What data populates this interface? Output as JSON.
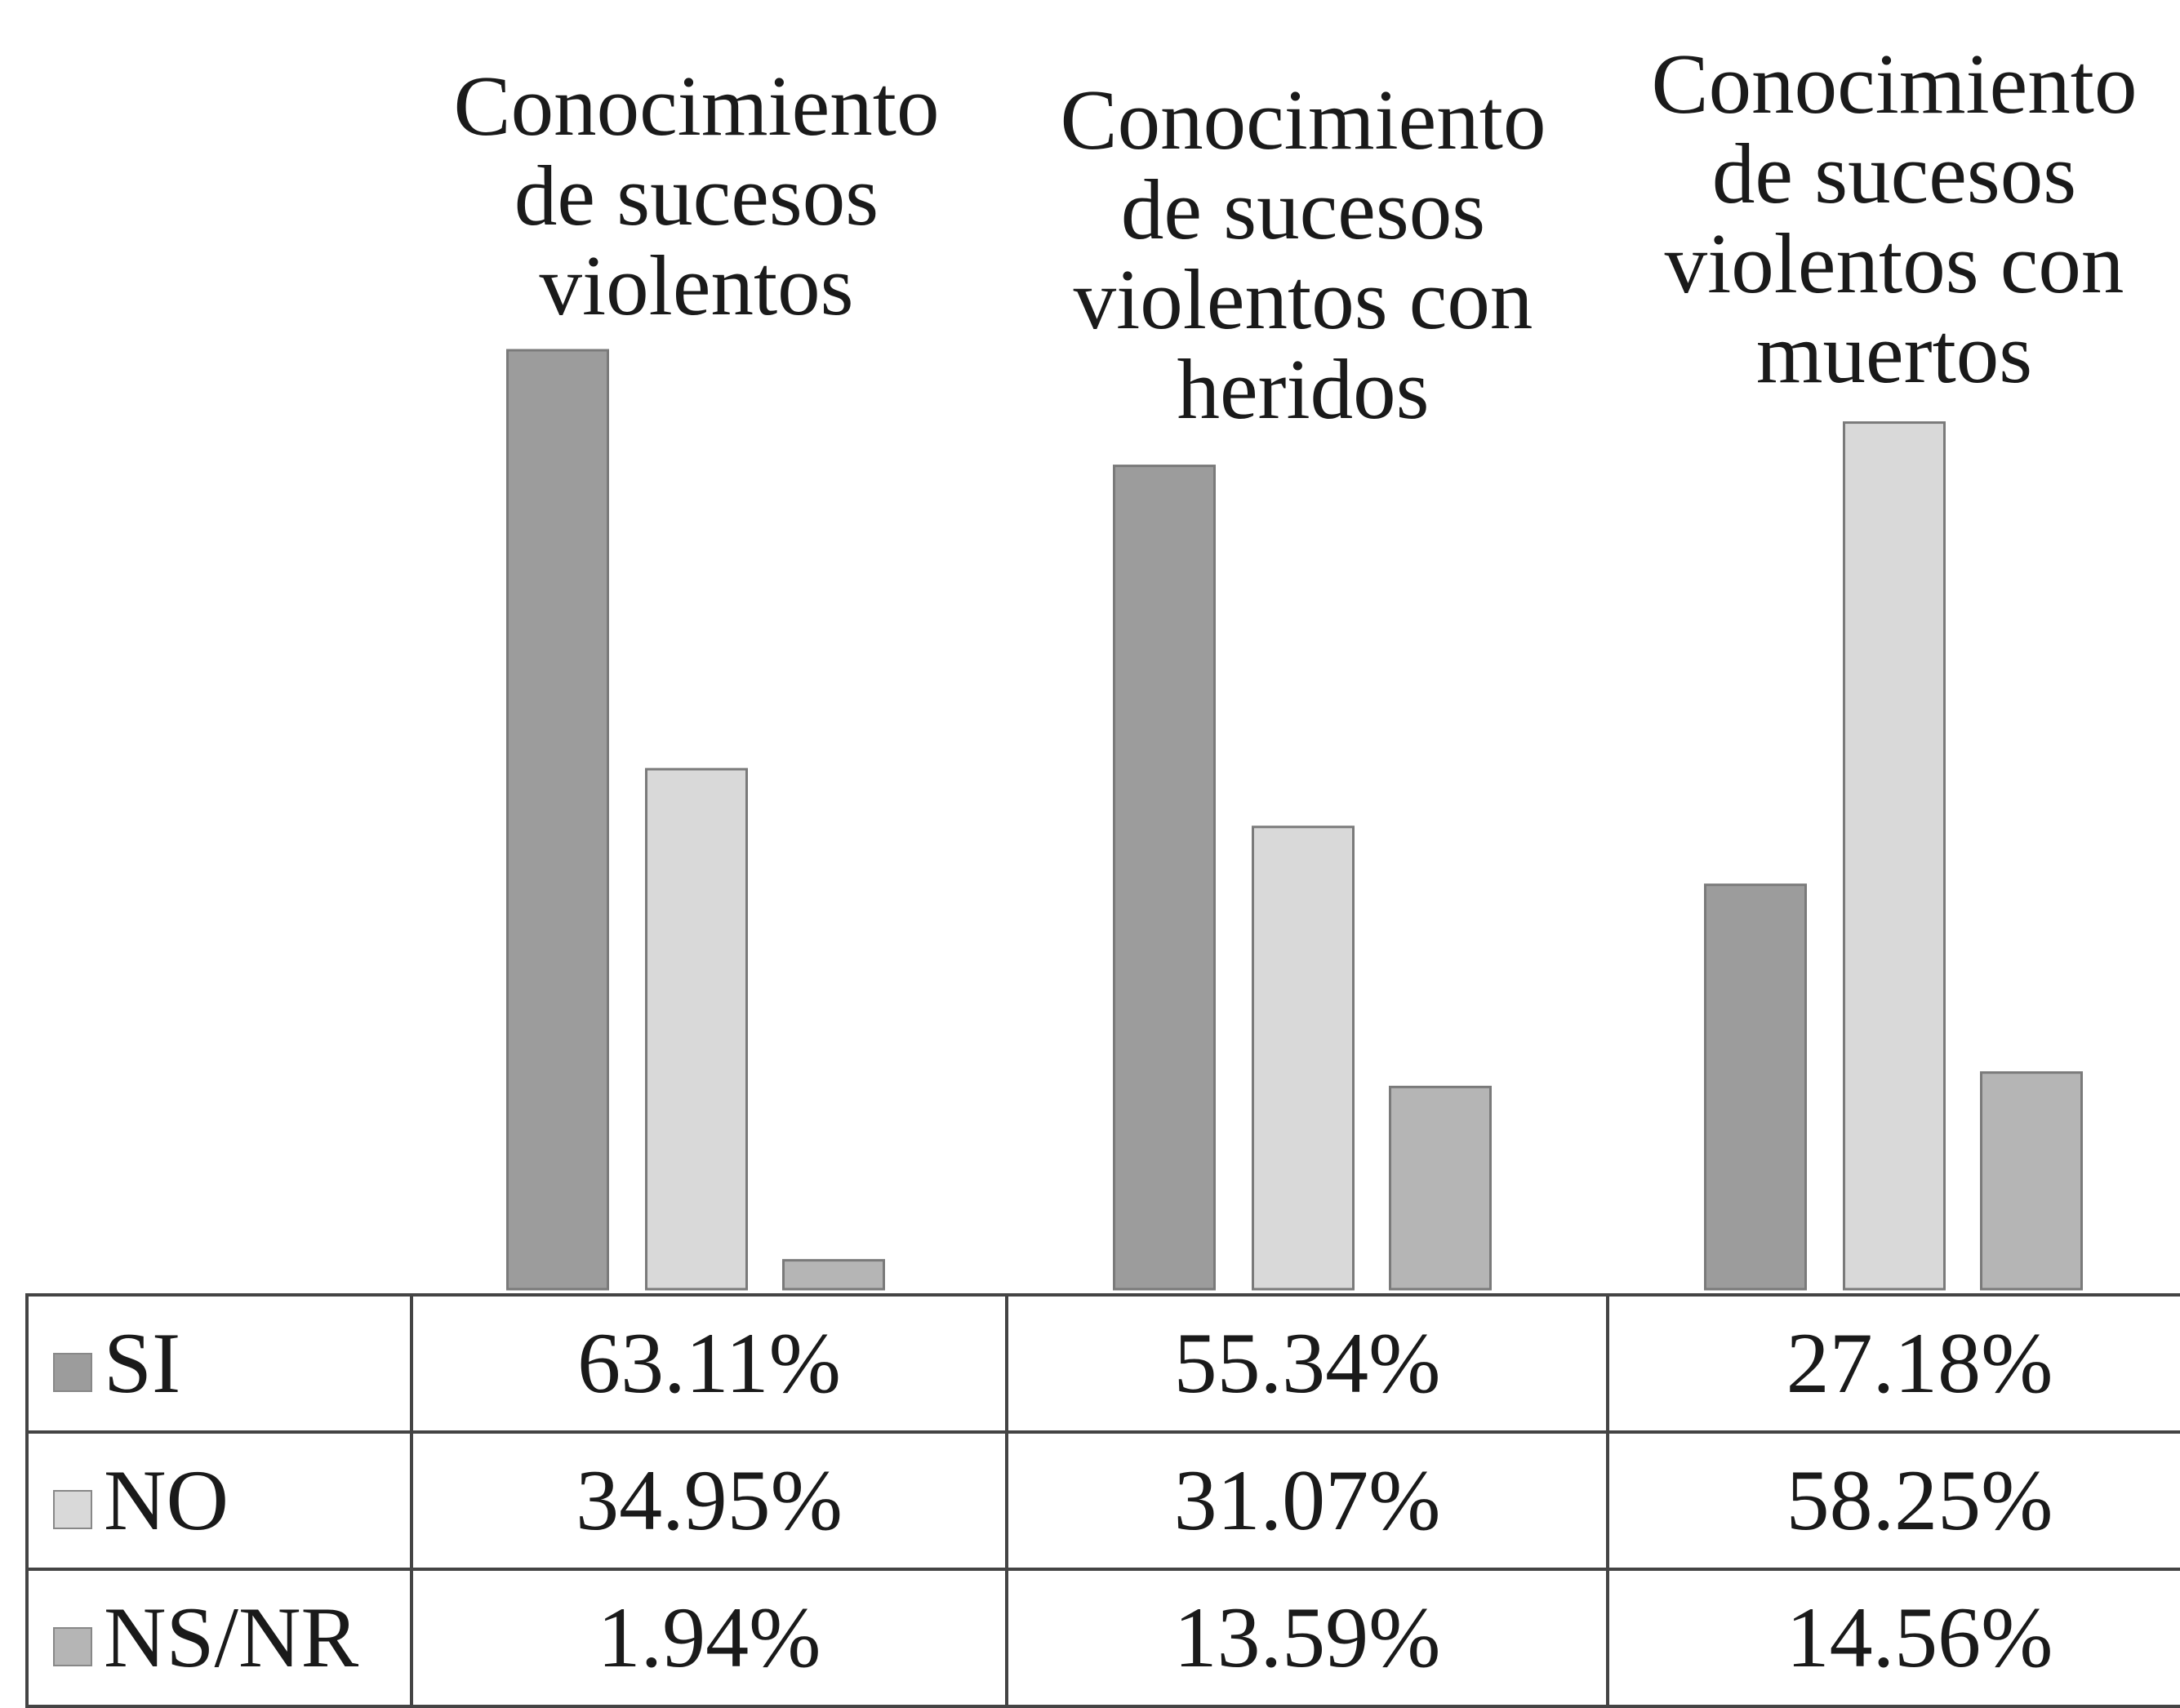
{
  "chart_data": {
    "type": "bar",
    "categories": [
      "Conocimiento de sucesos violentos",
      "Conocimiento de sucesos violentos con heridos",
      "Conocimiento de sucesos violentos con muertos"
    ],
    "series": [
      {
        "name": "SI",
        "color": "#9c9c9c",
        "values": [
          63.11,
          55.34,
          27.18
        ],
        "value_labels": [
          "63.11%",
          "55.34%",
          "27.18%"
        ]
      },
      {
        "name": "NO",
        "color": "#d9d9d9",
        "values": [
          34.95,
          31.07,
          58.25
        ],
        "value_labels": [
          "34.95%",
          "31.07%",
          "58.25%"
        ]
      },
      {
        "name": "NS/NR",
        "color": "#b5b5b5",
        "values": [
          1.94,
          13.59,
          14.56
        ],
        "value_labels": [
          "1.94%",
          "13.59%",
          "14.56%"
        ]
      }
    ]
  }
}
